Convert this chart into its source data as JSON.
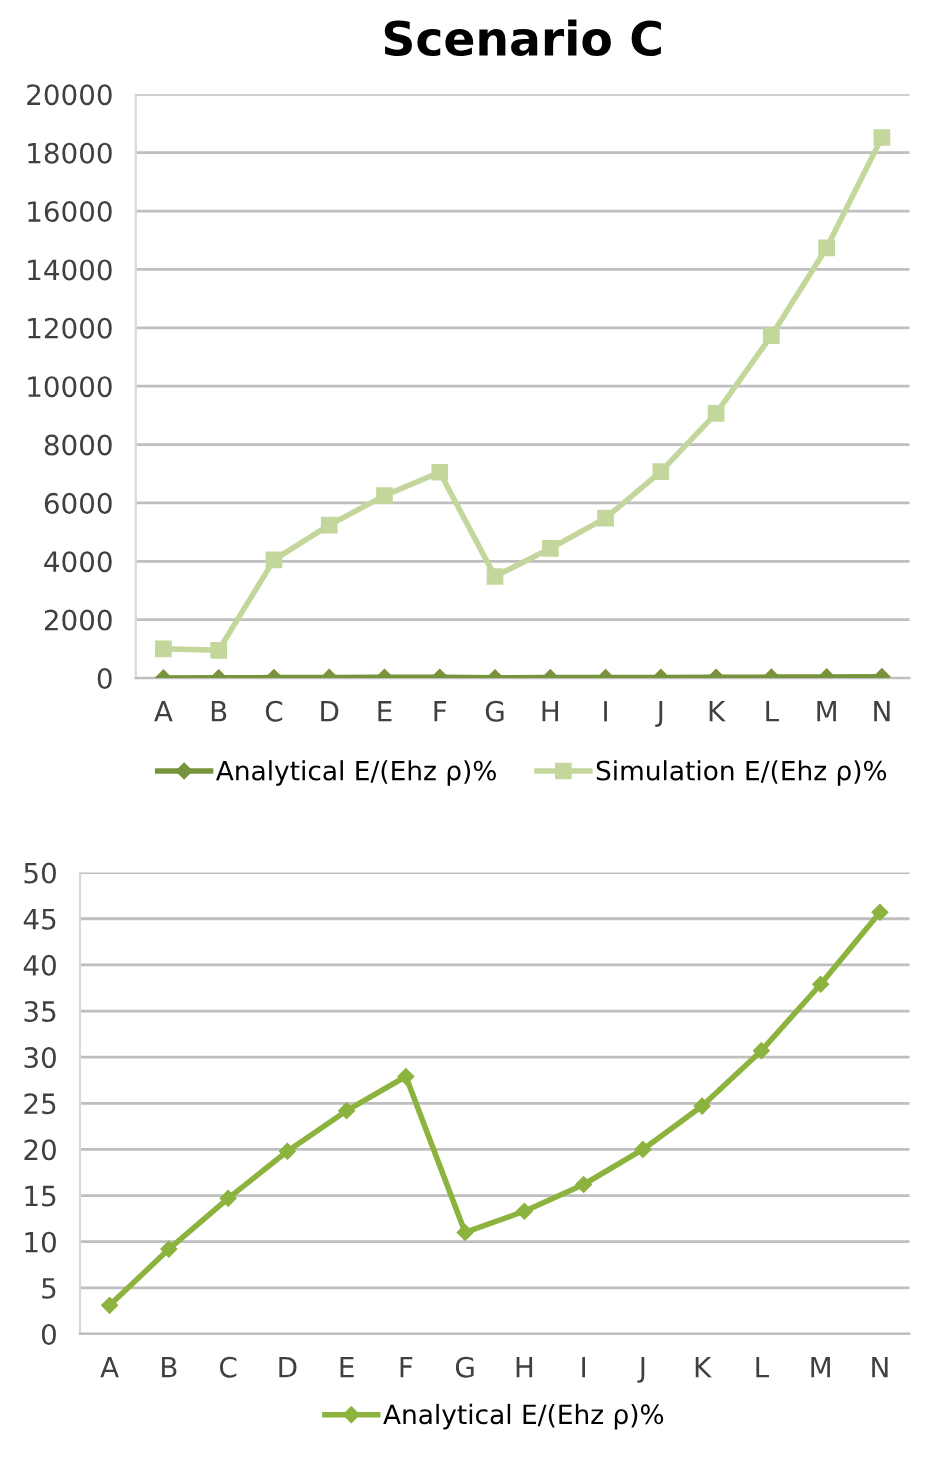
{
  "chart_data": [
    {
      "type": "line",
      "title": "Scenario C",
      "categories": [
        "A",
        "B",
        "C",
        "D",
        "E",
        "F",
        "G",
        "H",
        "I",
        "J",
        "K",
        "L",
        "M",
        "N"
      ],
      "series": [
        {
          "name": "Analytical E/(Ehz ρ)%",
          "color": "#77933c",
          "marker": "diamond",
          "values": [
            3.1,
            9.2,
            14.7,
            19.8,
            24.2,
            27.9,
            11.0,
            13.3,
            16.2,
            20.0,
            24.7,
            30.7,
            37.9,
            45.7
          ]
        },
        {
          "name": "Simulation E/(Ehz ρ)%",
          "color": "#c3d69b",
          "marker": "square",
          "values": [
            1000,
            950,
            4050,
            5240,
            6250,
            7050,
            3480,
            4440,
            5480,
            7070,
            9070,
            11730,
            14740,
            18520
          ]
        }
      ],
      "ylim": [
        0,
        20000
      ],
      "yticks": [
        0,
        2000,
        4000,
        6000,
        8000,
        10000,
        12000,
        14000,
        16000,
        18000,
        20000
      ],
      "grid": "y",
      "legend": "bottom",
      "line_style": "solid"
    },
    {
      "type": "line",
      "categories": [
        "A",
        "B",
        "C",
        "D",
        "E",
        "F",
        "G",
        "H",
        "I",
        "J",
        "K",
        "L",
        "M",
        "N"
      ],
      "series": [
        {
          "name": "Analytical E/(Ehz ρ)%",
          "color": "#8db33f",
          "marker": "diamond",
          "values": [
            3.1,
            9.2,
            14.7,
            19.8,
            24.2,
            27.9,
            11.0,
            13.3,
            16.2,
            20.0,
            24.7,
            30.7,
            37.9,
            45.7
          ]
        }
      ],
      "ylim": [
        0,
        50
      ],
      "yticks": [
        0,
        5,
        10,
        15,
        20,
        25,
        30,
        35,
        40,
        45,
        50
      ],
      "grid": "y",
      "legend": "bottom",
      "line_style": "solid"
    }
  ]
}
